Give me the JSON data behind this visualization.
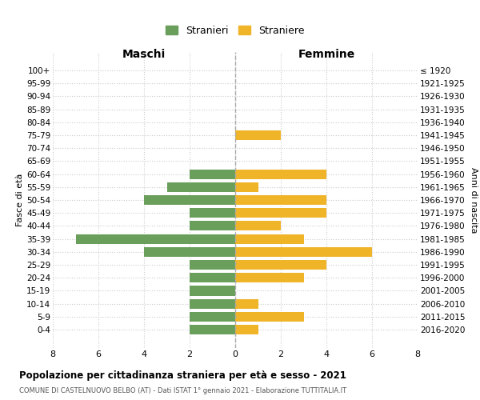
{
  "age_groups": [
    "100+",
    "95-99",
    "90-94",
    "85-89",
    "80-84",
    "75-79",
    "70-74",
    "65-69",
    "60-64",
    "55-59",
    "50-54",
    "45-49",
    "40-44",
    "35-39",
    "30-34",
    "25-29",
    "20-24",
    "15-19",
    "10-14",
    "5-9",
    "0-4"
  ],
  "birth_years": [
    "≤ 1920",
    "1921-1925",
    "1926-1930",
    "1931-1935",
    "1936-1940",
    "1941-1945",
    "1946-1950",
    "1951-1955",
    "1956-1960",
    "1961-1965",
    "1966-1970",
    "1971-1975",
    "1976-1980",
    "1981-1985",
    "1986-1990",
    "1991-1995",
    "1996-2000",
    "2001-2005",
    "2006-2010",
    "2011-2015",
    "2016-2020"
  ],
  "maschi": [
    0,
    0,
    0,
    0,
    0,
    0,
    0,
    0,
    2,
    3,
    4,
    2,
    2,
    7,
    4,
    2,
    2,
    2,
    2,
    2,
    2
  ],
  "femmine": [
    0,
    0,
    0,
    0,
    0,
    2,
    0,
    0,
    4,
    1,
    4,
    4,
    2,
    3,
    6,
    4,
    3,
    0,
    1,
    3,
    1
  ],
  "color_maschi": "#6a9e5b",
  "color_femmine": "#f0b429",
  "title": "Popolazione per cittadinanza straniera per età e sesso - 2021",
  "subtitle": "COMUNE DI CASTELNUOVO BELBO (AT) - Dati ISTAT 1° gennaio 2021 - Elaborazione TUTTITALIA.IT",
  "ylabel_left": "Fasce di età",
  "ylabel_right": "Anni di nascita",
  "xlabel_left": "Maschi",
  "xlabel_right": "Femmine",
  "legend_maschi": "Stranieri",
  "legend_femmine": "Straniere",
  "xlim": 8,
  "background_color": "#ffffff",
  "grid_color": "#cccccc"
}
